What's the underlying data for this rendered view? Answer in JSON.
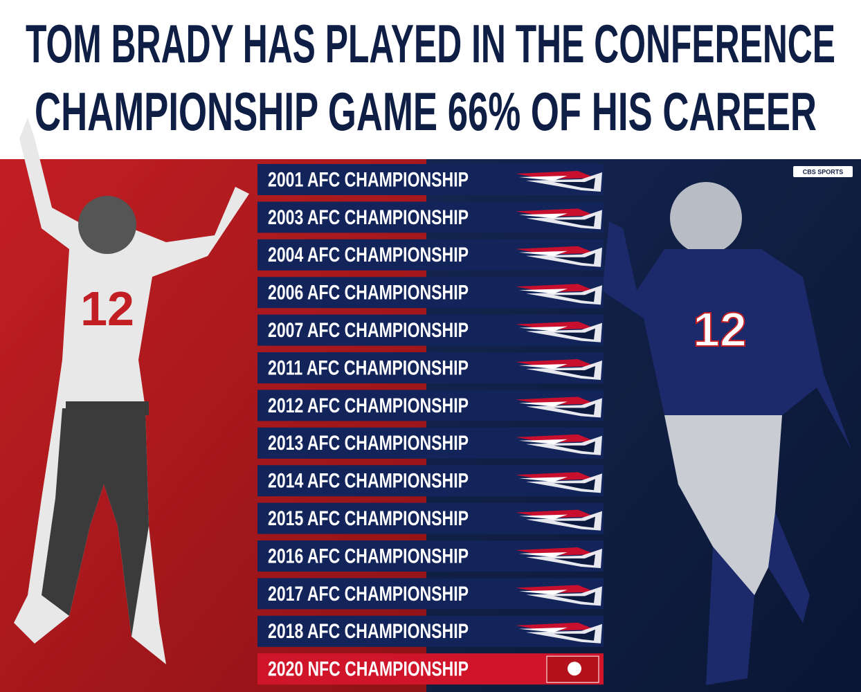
{
  "header": {
    "title_lines": [
      "TOM BRADY HAS PLAYED IN THE CONFERENCE",
      "CHAMPIONSHIP GAME 66% OF HIS CAREER"
    ]
  },
  "brand": "CBS SPORTS",
  "afc_games": [
    "2001 AFC CHAMPIONSHIP",
    "2003 AFC CHAMPIONSHIP",
    "2004 AFC CHAMPIONSHIP",
    "2006 AFC CHAMPIONSHIP",
    "2007 AFC CHAMPIONSHIP",
    "2011 AFC CHAMPIONSHIP",
    "2012 AFC CHAMPIONSHIP",
    "2013 AFC CHAMPIONSHIP",
    "2014 AFC CHAMPIONSHIP",
    "2015 AFC CHAMPIONSHIP",
    "2016 AFC CHAMPIONSHIP",
    "2017 AFC CHAMPIONSHIP",
    "2018 AFC CHAMPIONSHIP"
  ],
  "nfc_games": [
    "2020 NFC CHAMPIONSHIP"
  ]
}
